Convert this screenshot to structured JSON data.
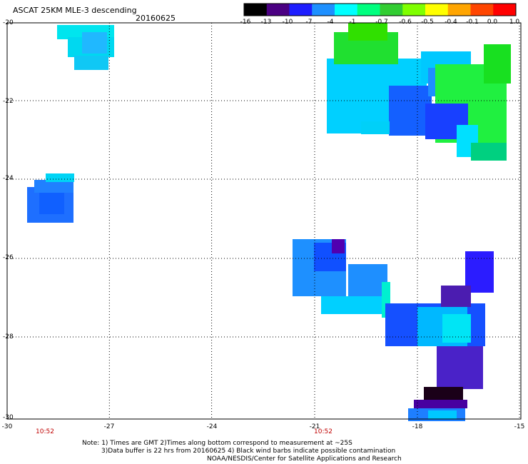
{
  "header": {
    "title": "ASCAT 25KM MLE-3 descending",
    "date": "20160625"
  },
  "colorbar": {
    "labels": [
      "-16",
      "-13",
      "-10",
      "-7",
      "-4",
      "-1",
      "-0.7",
      "-0.6",
      "-0.5",
      "-0.4",
      "-0.1",
      "0.0",
      "1.0"
    ],
    "colors": [
      "#000000",
      "#4b0082",
      "#1e1eff",
      "#1e90ff",
      "#00ffff",
      "#00ff7f",
      "#32cd32",
      "#7fff00",
      "#ffff00",
      "#ffa500",
      "#ff4500",
      "#ff0000"
    ]
  },
  "axes": {
    "y_ticks": [
      "-20",
      "-22",
      "-24",
      "-26",
      "-28",
      "-30"
    ],
    "x_ticks": [
      "-30",
      "-27",
      "-24",
      "-21",
      "-18",
      "-15"
    ],
    "times": [
      "10:52",
      "10:52"
    ],
    "lon_range": [
      -30,
      -15
    ],
    "lat_range": [
      -30,
      -20
    ]
  },
  "notes": {
    "line1": "Note: 1) Times are GMT 2)Times along bottom correspond to measurement at ~25S",
    "line2": "3)Data buffer is 22 hrs from 20160625 4) Black wind barbs indicate possible contamination",
    "line3": "NOAA/NESDIS/Center for Satellite Applications and Research"
  }
}
